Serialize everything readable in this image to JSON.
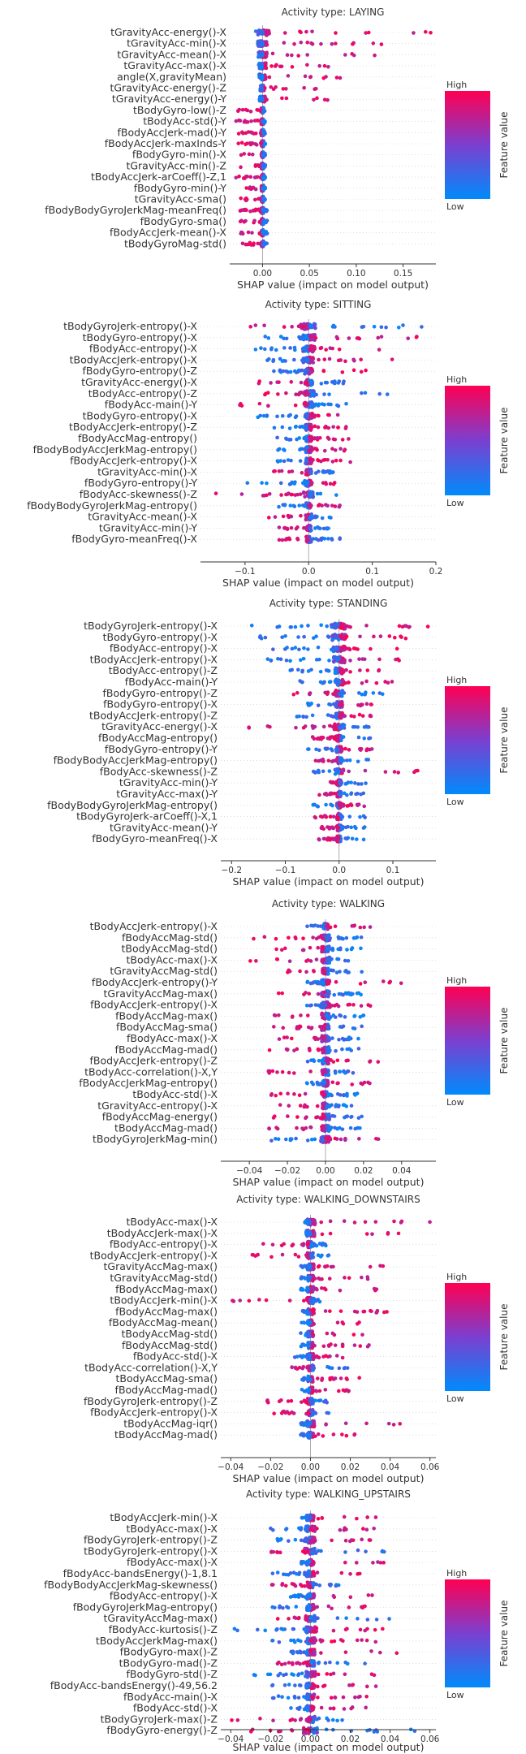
{
  "colorbar": {
    "high_label": "High",
    "low_label": "Low",
    "axis_label": "Feature value",
    "high_color": "#ff0052",
    "low_color": "#008bfb",
    "mid_color": "#7b3fd0"
  },
  "chart_data": [
    {
      "type": "scatter",
      "subtype": "shap-beeswarm",
      "title": "Activity type: LAYING",
      "xlabel": "SHAP value (impact on model output)",
      "xlim": [
        -0.035,
        0.185
      ],
      "xticks": [
        "0.00",
        "0.05",
        "0.10",
        "0.15"
      ],
      "xtick_values": [
        0.0,
        0.05,
        0.1,
        0.15
      ],
      "features": [
        "tGravityAcc-energy()-X",
        "tGravityAcc-min()-X",
        "tGravityAcc-mean()-X",
        "tGravityAcc-max()-X",
        "angle(X,gravityMean)",
        "tGravityAcc-energy()-Z",
        "tGravityAcc-energy()-Y",
        "tBodyGyro-low()-Z",
        "tBodyAcc-std()-Y",
        "fBodyAccJerk-mad()-Y",
        "fBodyAccJerk-maxInds-Y",
        "fBodyGyro-min()-X",
        "tGravityAcc-min()-Z",
        "tBodyAccJerk-arCoeff()-Z,1",
        "fBodyGyro-min()-Y",
        "tGravityAcc-sma()",
        "fBodyBodyGyroJerkMag-meanFreq()",
        "fBodyGyro-sma()",
        "fBodyAccJerk-mean()-X",
        "tBodyGyroMag-std()"
      ],
      "spreads": [
        [
          -0.001,
          0.18
        ],
        [
          -0.001,
          0.13
        ],
        [
          -0.001,
          0.12
        ],
        [
          -0.001,
          0.1
        ],
        [
          -0.001,
          0.09
        ],
        [
          -0.001,
          0.06
        ],
        [
          -0.001,
          0.08
        ],
        [
          -0.03,
          0.003
        ],
        [
          -0.03,
          0.003
        ],
        [
          -0.03,
          0.003
        ],
        [
          -0.028,
          0.003
        ],
        [
          -0.025,
          0.003
        ],
        [
          -0.025,
          0.003
        ],
        [
          -0.03,
          0.003
        ],
        [
          -0.025,
          0.003
        ],
        [
          -0.025,
          0.003
        ],
        [
          -0.025,
          0.005
        ],
        [
          -0.025,
          0.005
        ],
        [
          -0.025,
          0.005
        ],
        [
          -0.022,
          0.005
        ]
      ],
      "high_side": [
        "right",
        "right",
        "right",
        "right",
        "right",
        "right",
        "right",
        "left",
        "left",
        "left",
        "left",
        "left",
        "left",
        "left",
        "left",
        "left",
        "left",
        "left",
        "left",
        "left"
      ]
    },
    {
      "type": "scatter",
      "subtype": "shap-beeswarm",
      "title": "Activity type: SITTING",
      "xlabel": "SHAP value (impact on model output)",
      "xlim": [
        -0.17,
        0.2
      ],
      "xticks": [
        "−0.1",
        "0.0",
        "0.1",
        "0.2"
      ],
      "xtick_values": [
        -0.1,
        0.0,
        0.1,
        0.2
      ],
      "features": [
        "tBodyGyroJerk-entropy()-X",
        "tBodyGyro-entropy()-X",
        "fBodyAcc-entropy()-X",
        "tBodyAccJerk-entropy()-X",
        "fBodyGyro-entropy()-Z",
        "tGravityAcc-energy()-X",
        "tBodyAcc-entropy()-Z",
        "fBodyAcc-main()-Y",
        "tBodyGyro-entropy()-X",
        "tBodyAccJerk-entropy()-Z",
        "fBodyAccMag-entropy()",
        "fBodyBodyAccJerkMag-entropy()",
        "fBodyAccJerk-entropy()-X",
        "tGravityAcc-min()-X",
        "fBodyGyro-entropy()-Y",
        "fBodyAcc-skewness()-Z",
        "fBodyBodyGyroJerkMag-entropy()",
        "tGravityAcc-mean()-X",
        "tGravityAcc-min()-Y",
        "fBodyGyro-meanFreq()-X"
      ],
      "spreads": [
        [
          -0.12,
          0.19
        ],
        [
          -0.11,
          0.17
        ],
        [
          -0.09,
          0.15
        ],
        [
          -0.08,
          0.14
        ],
        [
          -0.06,
          0.09
        ],
        [
          -0.09,
          0.06
        ],
        [
          -0.07,
          0.14
        ],
        [
          -0.12,
          0.06
        ],
        [
          -0.08,
          0.06
        ],
        [
          -0.06,
          0.07
        ],
        [
          -0.05,
          0.07
        ],
        [
          -0.05,
          0.06
        ],
        [
          -0.05,
          0.07
        ],
        [
          -0.07,
          0.04
        ],
        [
          -0.11,
          0.05
        ],
        [
          -0.15,
          0.05
        ],
        [
          -0.05,
          0.05
        ],
        [
          -0.08,
          0.04
        ],
        [
          -0.05,
          0.05
        ],
        [
          -0.05,
          0.05
        ]
      ],
      "high_side": [
        "left",
        "right",
        "right",
        "right",
        "right",
        "left",
        "left",
        "left",
        "right",
        "right",
        "right",
        "right",
        "right",
        "left",
        "right",
        "left",
        "right",
        "left",
        "left",
        "left"
      ]
    },
    {
      "type": "scatter",
      "subtype": "shap-beeswarm",
      "title": "Activity type: STANDING",
      "xlabel": "SHAP value (impact on model output)",
      "xlim": [
        -0.22,
        0.18
      ],
      "xticks": [
        "−0.2",
        "−0.1",
        "0.0",
        "0.1"
      ],
      "xtick_values": [
        -0.2,
        -0.1,
        0.0,
        0.1
      ],
      "features": [
        "tBodyGyroJerk-entropy()-X",
        "tBodyGyro-entropy()-X",
        "fBodyAcc-entropy()-X",
        "tBodyAccJerk-entropy()-X",
        "tBodyAcc-entropy()-Z",
        "fBodyAcc-main()-Y",
        "fBodyGyro-entropy()-Z",
        "fBodyGyro-entropy()-X",
        "tBodyAccJerk-entropy()-Z",
        "tGravityAcc-energy()-X",
        "fBodyAccMag-entropy()",
        "fBodyGyro-entropy()-Y",
        "fBodyBodyAccJerkMag-entropy()",
        "fBodyAcc-skewness()-Z",
        "tGravityAcc-min()-Y",
        "tGravityAcc-max()-Y",
        "fBodyBodyGyroJerkMag-entropy()",
        "tBodyGyroJerk-arCoeff()-X,1",
        "tGravityAcc-mean()-Y",
        "fBodyGyro-meanFreq()-X"
      ],
      "spreads": [
        [
          -0.19,
          0.17
        ],
        [
          -0.17,
          0.15
        ],
        [
          -0.14,
          0.13
        ],
        [
          -0.14,
          0.12
        ],
        [
          -0.1,
          0.1
        ],
        [
          -0.08,
          0.12
        ],
        [
          -0.09,
          0.1
        ],
        [
          -0.07,
          0.08
        ],
        [
          -0.08,
          0.08
        ],
        [
          -0.19,
          0.06
        ],
        [
          -0.06,
          0.07
        ],
        [
          -0.06,
          0.08
        ],
        [
          -0.05,
          0.07
        ],
        [
          -0.05,
          0.16
        ],
        [
          -0.04,
          0.05
        ],
        [
          -0.04,
          0.05
        ],
        [
          -0.05,
          0.05
        ],
        [
          -0.05,
          0.05
        ],
        [
          -0.04,
          0.05
        ],
        [
          -0.04,
          0.05
        ]
      ],
      "high_side": [
        "right",
        "right",
        "right",
        "right",
        "right",
        "right",
        "left",
        "right",
        "right",
        "left",
        "left",
        "right",
        "left",
        "right",
        "left",
        "left",
        "right",
        "left",
        "left",
        "left"
      ]
    },
    {
      "type": "scatter",
      "subtype": "shap-beeswarm",
      "title": "Activity type: WALKING",
      "xlabel": "SHAP value (impact on model output)",
      "xlim": [
        -0.055,
        0.058
      ],
      "xticks": [
        "−0.04",
        "−0.02",
        "0.00",
        "0.02",
        "0.04"
      ],
      "xtick_values": [
        -0.04,
        -0.02,
        0.0,
        0.02,
        0.04
      ],
      "features": [
        "tBodyAccJerk-entropy()-X",
        "fBodyAccMag-std()",
        "tBodyAccMag-std()",
        "tBodyAcc-max()-X",
        "tGravityAccMag-std()",
        "fBodyAccJerk-entropy()-Y",
        "tGravityAccMag-max()",
        "fBodyAccJerk-entropy()-X",
        "fBodyAccMag-max()",
        "fBodyAccMag-sma()",
        "fBodyAcc-max()-X",
        "fBodyAccMag-mad()",
        "fBodyAccJerk-entropy()-Z",
        "tBodyAcc-correlation()-X,Y",
        "fBodyAccJerkMag-entropy()",
        "tBodyAcc-std()-X",
        "tGravityAcc-entropy()-X",
        "fBodyAccMag-energy()",
        "tBodyAccMag-mad()",
        "tBodyGyroJerkMag-min()"
      ],
      "spreads": [
        [
          -0.01,
          0.025
        ],
        [
          -0.04,
          0.02
        ],
        [
          -0.04,
          0.02
        ],
        [
          -0.04,
          0.015
        ],
        [
          -0.02,
          0.02
        ],
        [
          -0.01,
          0.045
        ],
        [
          -0.03,
          0.02
        ],
        [
          -0.01,
          0.05
        ],
        [
          -0.03,
          0.02
        ],
        [
          -0.03,
          0.02
        ],
        [
          -0.03,
          0.02
        ],
        [
          -0.03,
          0.02
        ],
        [
          -0.01,
          0.03
        ],
        [
          -0.03,
          0.015
        ],
        [
          -0.01,
          0.025
        ],
        [
          -0.03,
          0.02
        ],
        [
          -0.03,
          0.015
        ],
        [
          -0.03,
          0.02
        ],
        [
          -0.03,
          0.02
        ],
        [
          -0.03,
          0.03
        ]
      ],
      "high_side": [
        "right",
        "left",
        "left",
        "left",
        "left",
        "right",
        "left",
        "right",
        "left",
        "left",
        "left",
        "left",
        "right",
        "left",
        "right",
        "left",
        "left",
        "left",
        "left",
        "right"
      ]
    },
    {
      "type": "scatter",
      "subtype": "shap-beeswarm",
      "title": "Activity type: WALKING_DOWNSTAIRS",
      "xlabel": "SHAP value (impact on model output)",
      "xlim": [
        -0.045,
        0.063
      ],
      "xticks": [
        "−0.04",
        "−0.02",
        "0.00",
        "0.02",
        "0.04",
        "0.06"
      ],
      "xtick_values": [
        -0.04,
        -0.02,
        0.0,
        0.02,
        0.04,
        0.06
      ],
      "features": [
        "tBodyAcc-max()-X",
        "tBodyAccJerk-max()-X",
        "fBodyAcc-entropy()-X",
        "tBodyAccJerk-entropy()-X",
        "tGravityAccMag-max()",
        "tGravityAccMag-std()",
        "fBodyAccMag-max()",
        "tBodyAccJerk-min()-X",
        "fBodyAccMag-max()",
        "fBodyAccMag-mean()",
        "tBodyAccMag-std()",
        "fBodyAccMag-std()",
        "fBodyAcc-std()-X",
        "tBodyAcc-correlation()-X,Y",
        "tBodyAccMag-sma()",
        "fBodyAccMag-mad()",
        "fBodyGyroJerk-entropy()-Z",
        "fBodyAccJerk-entropy()-X",
        "tBodyAccMag-iqr()",
        "tBodyAccMag-mad()"
      ],
      "spreads": [
        [
          -0.003,
          0.06
        ],
        [
          -0.003,
          0.05
        ],
        [
          -0.03,
          0.01
        ],
        [
          -0.03,
          0.01
        ],
        [
          -0.005,
          0.04
        ],
        [
          -0.005,
          0.035
        ],
        [
          -0.005,
          0.035
        ],
        [
          -0.04,
          0.005
        ],
        [
          -0.005,
          0.04
        ],
        [
          -0.005,
          0.03
        ],
        [
          -0.005,
          0.03
        ],
        [
          -0.005,
          0.03
        ],
        [
          -0.01,
          0.03
        ],
        [
          -0.01,
          0.03
        ],
        [
          -0.005,
          0.025
        ],
        [
          -0.005,
          0.025
        ],
        [
          -0.025,
          0.01
        ],
        [
          -0.02,
          0.01
        ],
        [
          -0.005,
          0.045
        ],
        [
          -0.005,
          0.03
        ]
      ],
      "high_side": [
        "right",
        "right",
        "left",
        "left",
        "right",
        "right",
        "right",
        "left",
        "right",
        "right",
        "right",
        "right",
        "right",
        "left",
        "right",
        "right",
        "left",
        "left",
        "right",
        "right"
      ]
    },
    {
      "type": "scatter",
      "subtype": "shap-beeswarm",
      "title": "Activity type: WALKING_UPSTAIRS",
      "xlabel": "SHAP value (impact on model output)",
      "xlim": [
        -0.045,
        0.063
      ],
      "xticks": [
        "−0.04",
        "−0.02",
        "0.00",
        "0.02",
        "0.04",
        "0.06"
      ],
      "xtick_values": [
        -0.04,
        -0.02,
        0.0,
        0.02,
        0.04,
        0.06
      ],
      "features": [
        "tBodyAccJerk-min()-X",
        "tBodyAcc-max()-X",
        "fBodyGyroJerk-entropy()-Z",
        "tBodyGyroJerk-entropy()-X",
        "fBodyAcc-max()-X",
        "fBodyAcc-bandsEnergy()-1,8.1",
        "fBodyBodyAccJerkMag-skewness()",
        "fBodyAcc-entropy()-X",
        "fBodyGyroJerkMag-entropy()",
        "tGravityAccMag-max()",
        "fBodyAcc-kurtosis()-Z",
        "tBodyAccJerkMag-max()",
        "fBodyGyro-max()-Z",
        "tBodyGyro-mad()-Z",
        "fBodyGyro-std()-Z",
        "fBodyAcc-bandsEnergy()-49,56.2",
        "fBodyAcc-main()-X",
        "fBodyAcc-std()-X",
        "tBodyGyroJerk-max()-Z",
        "fBodyGyro-energy()-Z"
      ],
      "spreads": [
        [
          -0.005,
          0.04
        ],
        [
          -0.02,
          0.035
        ],
        [
          -0.02,
          0.04
        ],
        [
          -0.02,
          0.05
        ],
        [
          -0.005,
          0.04
        ],
        [
          -0.02,
          0.03
        ],
        [
          -0.02,
          0.02
        ],
        [
          -0.01,
          0.04
        ],
        [
          -0.02,
          0.03
        ],
        [
          -0.02,
          0.04
        ],
        [
          -0.04,
          0.04
        ],
        [
          -0.02,
          0.035
        ],
        [
          -0.01,
          0.045
        ],
        [
          -0.02,
          0.03
        ],
        [
          -0.03,
          0.035
        ],
        [
          -0.02,
          0.035
        ],
        [
          -0.02,
          0.03
        ],
        [
          -0.01,
          0.03
        ],
        [
          -0.04,
          0.02
        ],
        [
          -0.03,
          0.055
        ]
      ],
      "high_side": [
        "right",
        "right",
        "right",
        "left",
        "right",
        "right",
        "left",
        "right",
        "right",
        "left",
        "right",
        "right",
        "right",
        "left",
        "right",
        "right",
        "right",
        "right",
        "left",
        "left"
      ]
    }
  ]
}
